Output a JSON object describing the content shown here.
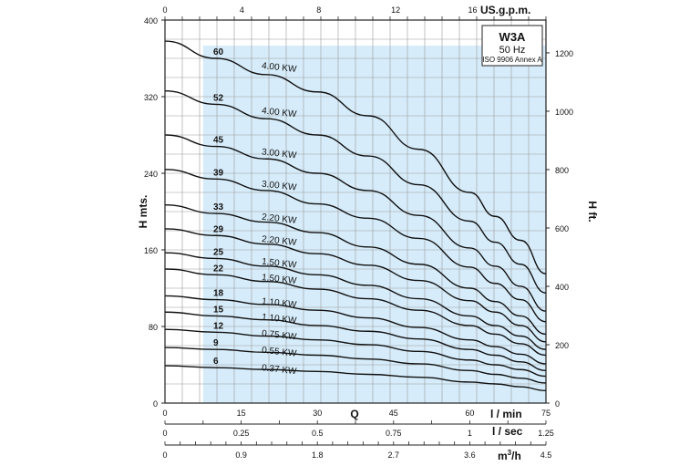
{
  "chart_data": {
    "type": "line",
    "title": "W3A",
    "subtitle": "50 Hz",
    "note": "ISO 9906 Annex A",
    "y_left": {
      "label": "H mts.",
      "ylim": [
        0,
        400
      ],
      "ticks": [
        "0",
        "80",
        "160",
        "240",
        "320",
        "400"
      ]
    },
    "y_right": {
      "label": "H ft.",
      "ylim": [
        0,
        1312.3
      ],
      "ticks": [
        "0",
        "200",
        "400",
        "600",
        "800",
        "1000",
        "1200"
      ]
    },
    "x_top": {
      "label": "US.g.p.m.",
      "range": [
        0,
        16
      ],
      "ticks": [
        "0",
        "4",
        "8",
        "12",
        "16"
      ]
    },
    "x_lmin": {
      "label": "l / min",
      "range": [
        0,
        75
      ],
      "ticks": [
        "0",
        "15",
        "30",
        "45",
        "60",
        "75"
      ]
    },
    "x_lsec": {
      "label": "l / sec",
      "range": [
        0,
        1.25
      ],
      "ticks": [
        "0",
        "0.25",
        "0.5",
        "0.75",
        "1",
        "1.25"
      ]
    },
    "x_m3h": {
      "label": "m³/h",
      "range": [
        0,
        4.5
      ],
      "ticks": [
        "0",
        "0.9",
        "1.8",
        "2.7",
        "3.6",
        "4.5"
      ]
    },
    "x_mid_label": "Q",
    "shaded_range_lmin": [
      7.5,
      75
    ],
    "grid": true,
    "series": [
      {
        "name": "60",
        "power": "4.00 KW",
        "x": [
          0,
          10,
          20,
          30,
          40,
          50,
          60,
          65,
          70,
          75
        ],
        "y": [
          378,
          360,
          343,
          325,
          300,
          265,
          220,
          195,
          170,
          135
        ]
      },
      {
        "name": "52",
        "power": "4.00 KW",
        "x": [
          0,
          10,
          20,
          30,
          40,
          50,
          60,
          65,
          70,
          75
        ],
        "y": [
          326,
          312,
          297,
          280,
          258,
          228,
          190,
          168,
          145,
          115
        ]
      },
      {
        "name": "45",
        "power": "3.00 KW",
        "x": [
          0,
          10,
          20,
          30,
          40,
          50,
          60,
          65,
          70,
          75
        ],
        "y": [
          280,
          268,
          255,
          240,
          222,
          196,
          162,
          143,
          122,
          96
        ]
      },
      {
        "name": "39",
        "power": "3.00 KW",
        "x": [
          0,
          10,
          20,
          30,
          40,
          50,
          60,
          65,
          70,
          75
        ],
        "y": [
          244,
          234,
          222,
          208,
          193,
          172,
          142,
          125,
          108,
          85
        ]
      },
      {
        "name": "33",
        "power": "2.20 KW",
        "x": [
          0,
          10,
          20,
          30,
          40,
          50,
          60,
          65,
          70,
          75
        ],
        "y": [
          207,
          198,
          189,
          178,
          163,
          145,
          120,
          106,
          91,
          72
        ]
      },
      {
        "name": "29",
        "power": "2.20 KW",
        "x": [
          0,
          10,
          20,
          30,
          40,
          50,
          60,
          65,
          70,
          75
        ],
        "y": [
          182,
          175,
          166,
          156,
          144,
          128,
          107,
          95,
          81,
          64
        ]
      },
      {
        "name": "25",
        "power": "1.50 KW",
        "x": [
          0,
          10,
          20,
          30,
          40,
          50,
          60,
          65,
          70,
          75
        ],
        "y": [
          157,
          151,
          143,
          134,
          123,
          109,
          91,
          81,
          70,
          56
        ]
      },
      {
        "name": "22",
        "power": "1.50 KW",
        "x": [
          0,
          10,
          20,
          30,
          40,
          50,
          60,
          65,
          70,
          75
        ],
        "y": [
          140,
          134,
          127,
          119,
          109,
          97,
          81,
          72,
          62,
          50
        ]
      },
      {
        "name": "18",
        "power": "1.10 KW",
        "x": [
          0,
          10,
          20,
          30,
          40,
          50,
          60,
          65,
          70,
          75
        ],
        "y": [
          112,
          108,
          103,
          97,
          89,
          79,
          66,
          59,
          51,
          41
        ]
      },
      {
        "name": "15",
        "power": "1.10 KW",
        "x": [
          0,
          10,
          20,
          30,
          40,
          50,
          60,
          65,
          70,
          75
        ],
        "y": [
          95,
          91,
          87,
          81,
          75,
          67,
          56,
          50,
          43,
          34
        ]
      },
      {
        "name": "12",
        "power": "0.75 KW",
        "x": [
          0,
          10,
          20,
          30,
          40,
          50,
          60,
          65,
          70,
          75
        ],
        "y": [
          77,
          74,
          70,
          66,
          61,
          54,
          45,
          40,
          35,
          28
        ]
      },
      {
        "name": "9",
        "power": "0.55 KW",
        "x": [
          0,
          10,
          20,
          30,
          40,
          50,
          60,
          65,
          70,
          75
        ],
        "y": [
          58,
          56,
          53,
          50,
          46,
          41,
          34,
          30,
          26,
          21
        ]
      },
      {
        "name": "6",
        "power": "0.37 KW",
        "x": [
          0,
          10,
          20,
          30,
          40,
          50,
          60,
          65,
          70,
          75
        ],
        "y": [
          39,
          37,
          35,
          33,
          30,
          27,
          22,
          20,
          17,
          13
        ]
      }
    ]
  }
}
